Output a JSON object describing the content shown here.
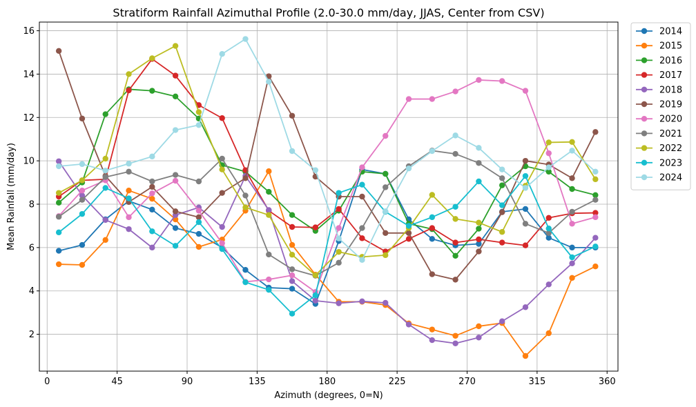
{
  "chart_data": {
    "type": "line",
    "title": "Stratiform Rainfall Azimuthal Profile (2.0-30.0 mm/day, JJAS, Center from CSV)",
    "xlabel": "Azimuth (degrees, 0=N)",
    "ylabel": "Mean Rainfall (mm/day)",
    "xlim": [
      -5,
      367
    ],
    "ylim": [
      0.3,
      16.4
    ],
    "xticks": [
      0,
      45,
      90,
      135,
      180,
      225,
      270,
      315,
      360
    ],
    "yticks": [
      2,
      4,
      6,
      8,
      10,
      12,
      14,
      16
    ],
    "grid": true,
    "legend_position": "outside-top-right",
    "x": [
      7.5,
      22.5,
      37.5,
      52.5,
      67.5,
      82.5,
      97.5,
      112.5,
      127.5,
      142.5,
      157.5,
      172.5,
      187.5,
      202.5,
      217.5,
      232.5,
      247.5,
      262.5,
      277.5,
      292.5,
      307.5,
      322.5,
      337.5,
      352.5
    ],
    "series": [
      {
        "name": "2014",
        "color": "#1f77b4",
        "values": [
          5.85,
          6.12,
          7.3,
          8.15,
          7.75,
          6.9,
          6.63,
          6.0,
          4.97,
          4.15,
          4.1,
          3.4,
          6.3,
          9.6,
          9.4,
          7.3,
          6.4,
          6.1,
          6.17,
          7.65,
          7.78,
          6.45,
          6.0,
          6.0
        ]
      },
      {
        "name": "2015",
        "color": "#ff7f0e",
        "values": [
          5.23,
          5.2,
          6.35,
          8.63,
          8.25,
          7.3,
          6.03,
          6.37,
          7.7,
          9.52,
          6.12,
          4.75,
          3.5,
          3.5,
          3.35,
          2.5,
          2.22,
          1.93,
          2.37,
          2.52,
          1.0,
          2.05,
          4.6,
          5.13
        ]
      },
      {
        "name": "2016",
        "color": "#2ca02c",
        "values": [
          8.07,
          9.0,
          12.15,
          13.3,
          13.23,
          12.97,
          11.95,
          9.8,
          9.5,
          8.57,
          7.5,
          6.77,
          7.7,
          9.5,
          9.4,
          7.1,
          6.85,
          5.62,
          6.87,
          8.87,
          9.75,
          9.5,
          8.7,
          8.42
        ]
      },
      {
        "name": "2017",
        "color": "#d62728",
        "values": [
          8.35,
          9.1,
          9.15,
          13.25,
          14.7,
          13.93,
          12.57,
          11.97,
          9.57,
          7.7,
          6.95,
          6.93,
          7.78,
          6.43,
          5.82,
          6.4,
          6.9,
          6.23,
          6.38,
          6.23,
          6.1,
          7.37,
          7.58,
          7.6
        ]
      },
      {
        "name": "2018",
        "color": "#9467bd",
        "values": [
          9.98,
          8.4,
          7.27,
          6.85,
          6.0,
          7.5,
          7.85,
          6.95,
          9.3,
          7.73,
          4.45,
          3.55,
          3.43,
          3.52,
          3.45,
          2.45,
          1.73,
          1.58,
          1.85,
          2.6,
          3.25,
          4.3,
          5.27,
          6.45
        ]
      },
      {
        "name": "2019",
        "color": "#8c564b",
        "values": [
          15.07,
          11.95,
          9.3,
          8.1,
          8.8,
          7.67,
          7.4,
          8.52,
          9.2,
          13.9,
          12.08,
          9.27,
          8.35,
          8.35,
          6.67,
          6.67,
          4.77,
          4.52,
          5.82,
          7.63,
          10.0,
          9.83,
          9.2,
          11.33
        ]
      },
      {
        "name": "2020",
        "color": "#e377c2",
        "values": [
          7.45,
          8.63,
          9.1,
          7.4,
          8.5,
          9.08,
          7.7,
          6.2,
          4.42,
          4.53,
          4.72,
          3.95,
          6.9,
          9.7,
          11.15,
          12.85,
          12.85,
          13.2,
          13.73,
          13.68,
          13.23,
          10.35,
          7.1,
          7.4
        ]
      },
      {
        "name": "2021",
        "color": "#7f7f7f",
        "values": [
          7.42,
          8.2,
          9.25,
          9.5,
          9.05,
          9.35,
          9.05,
          10.1,
          8.4,
          5.68,
          5.0,
          4.7,
          5.3,
          6.9,
          8.78,
          9.75,
          10.47,
          10.32,
          9.9,
          9.2,
          7.1,
          6.67,
          7.65,
          8.2
        ]
      },
      {
        "name": "2022",
        "color": "#bcbd22",
        "values": [
          8.52,
          9.1,
          10.1,
          14.0,
          14.73,
          15.3,
          12.25,
          9.6,
          7.85,
          7.5,
          5.67,
          4.72,
          5.8,
          5.57,
          5.65,
          6.9,
          8.43,
          7.32,
          7.15,
          6.72,
          8.85,
          10.85,
          10.87,
          9.15
        ]
      },
      {
        "name": "2023",
        "color": "#17becf",
        "values": [
          6.7,
          7.55,
          8.75,
          8.27,
          6.75,
          6.08,
          7.17,
          5.93,
          4.4,
          4.05,
          2.95,
          3.8,
          8.52,
          8.9,
          7.65,
          7.0,
          7.4,
          7.88,
          9.05,
          7.95,
          9.3,
          6.88,
          5.55,
          6.05
        ]
      },
      {
        "name": "2024",
        "color": "#9edae5",
        "values": [
          9.75,
          9.85,
          9.55,
          9.87,
          10.2,
          11.42,
          11.65,
          14.93,
          15.62,
          13.65,
          10.45,
          9.57,
          6.42,
          5.43,
          7.67,
          9.65,
          10.45,
          11.17,
          10.6,
          9.6,
          8.75,
          9.7,
          10.47,
          9.5
        ]
      }
    ]
  }
}
